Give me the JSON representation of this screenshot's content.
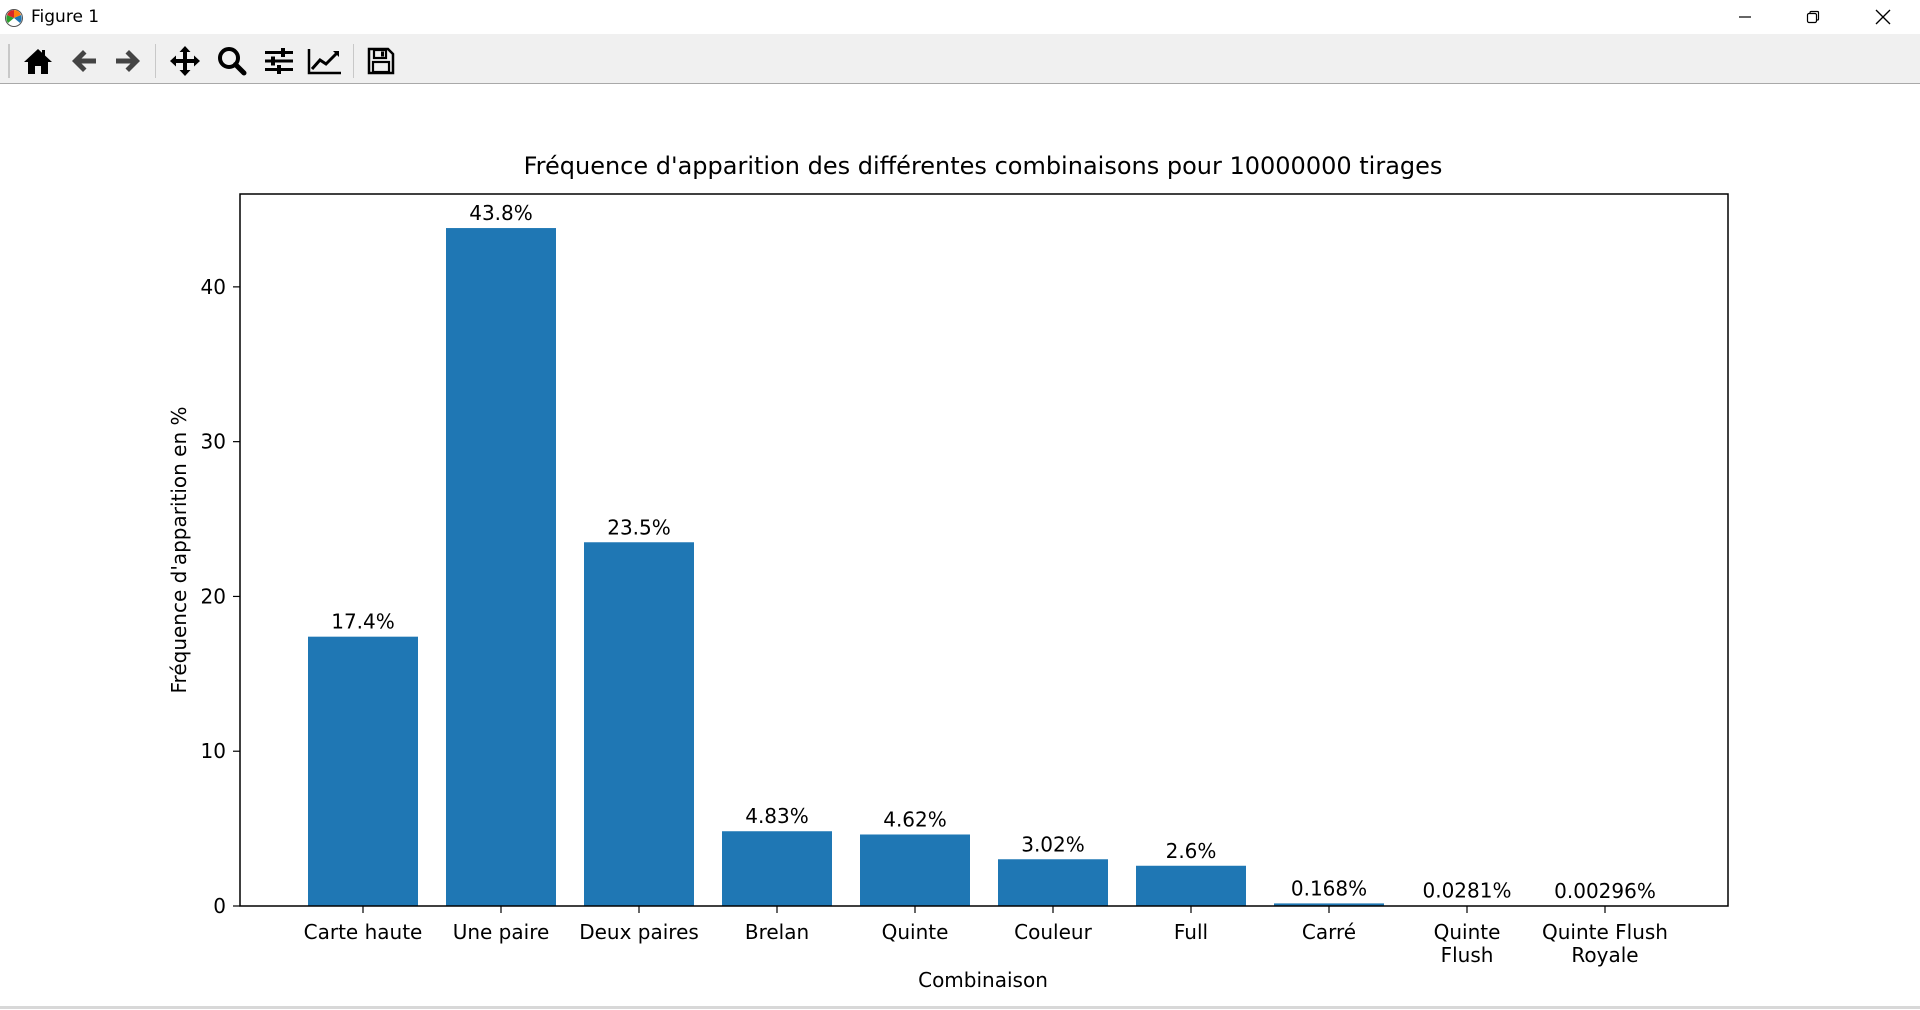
{
  "window": {
    "title": "Figure 1",
    "controls": [
      "minimize",
      "restore",
      "close"
    ]
  },
  "toolbar": {
    "buttons": [
      {
        "name": "home",
        "icon": "home-icon"
      },
      {
        "name": "back",
        "icon": "arrow-left-icon"
      },
      {
        "name": "forward",
        "icon": "arrow-right-icon"
      },
      {
        "name": "pan",
        "icon": "move-icon"
      },
      {
        "name": "zoom",
        "icon": "magnifier-icon"
      },
      {
        "name": "configure-subplots",
        "icon": "sliders-icon"
      },
      {
        "name": "edit-axis",
        "icon": "line-chart-icon"
      },
      {
        "name": "save",
        "icon": "floppy-disk-icon"
      }
    ]
  },
  "chart_data": {
    "type": "bar",
    "title": "Fréquence d'apparition des différentes combinaisons pour 10000000 tirages",
    "xlabel": "Combinaison",
    "ylabel": "Fréquence d'apparition en %",
    "categories": [
      [
        "Carte haute"
      ],
      [
        "Une paire"
      ],
      [
        "Deux paires"
      ],
      [
        "Brelan"
      ],
      [
        "Quinte"
      ],
      [
        "Couleur"
      ],
      [
        "Full"
      ],
      [
        "Carré"
      ],
      [
        "Quinte",
        "Flush"
      ],
      [
        "Quinte Flush",
        "Royale"
      ]
    ],
    "values": [
      17.4,
      43.8,
      23.5,
      4.83,
      4.62,
      3.02,
      2.6,
      0.168,
      0.0281,
      0.00296
    ],
    "bar_labels": [
      "17.4%",
      "43.8%",
      "23.5%",
      "4.83%",
      "4.62%",
      "3.02%",
      "2.6%",
      "0.168%",
      "0.0281%",
      "0.00296%"
    ],
    "yticks": [
      "0",
      "10",
      "20",
      "30",
      "40"
    ],
    "ylim": [
      0,
      46
    ],
    "grid": false,
    "bar_color": "#1f77b4"
  }
}
